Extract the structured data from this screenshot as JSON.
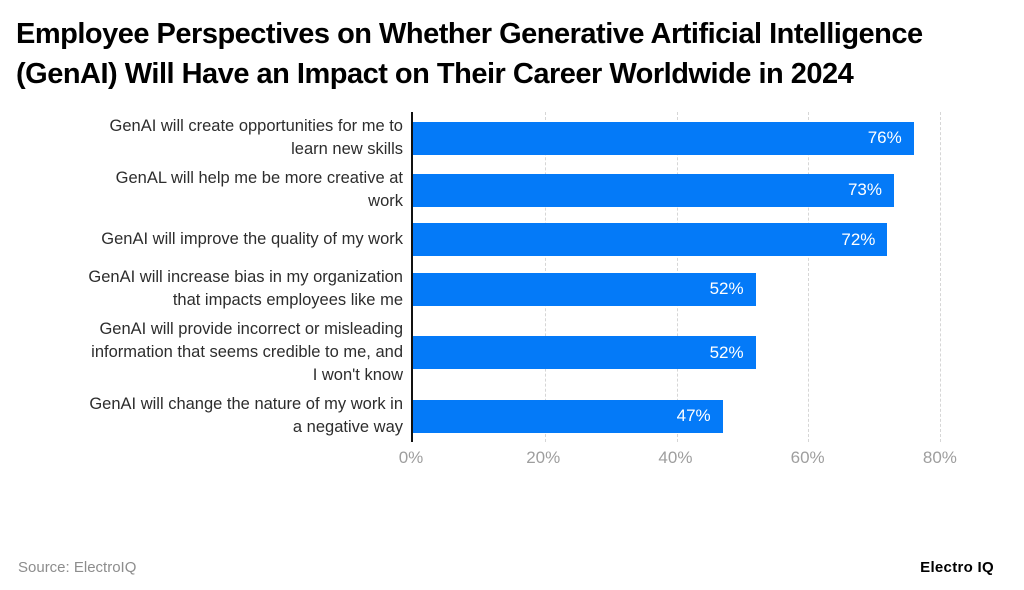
{
  "title": "Employee Perspectives on Whether Generative Artificial Intelligence (GenAI) Will Have an Impact on Their Career Worldwide in 2024",
  "chart_data": {
    "type": "bar",
    "orientation": "horizontal",
    "title": "Employee Perspectives on Whether Generative Artificial Intelligence (GenAI) Will Have an Impact on Their Career Worldwide in 2024",
    "categories": [
      "GenAI will create opportunities for me to learn new skills",
      "GenAL will help me be more creative at work",
      "GenAI will improve the quality of my work",
      "GenAI will increase bias in my organization that impacts employees like me",
      "GenAI will provide incorrect or misleading information that seems credible to me, and I won't know",
      "GenAI will change the nature of my work in a negative way"
    ],
    "label_lines": [
      [
        "GenAI will create opportunities for me to",
        "learn new skills"
      ],
      [
        "GenAL will help me be more creative at",
        "work"
      ],
      [
        "GenAI will improve the quality of my work"
      ],
      [
        "GenAI will increase bias in my organization",
        "that impacts employees like me"
      ],
      [
        "GenAI will provide incorrect or misleading",
        "information that seems credible to me, and",
        "I won't know"
      ],
      [
        "GenAI will change the nature of my work in",
        "a negative way"
      ]
    ],
    "values": [
      76,
      73,
      72,
      52,
      52,
      47
    ],
    "value_labels": [
      "76%",
      "73%",
      "72%",
      "52%",
      "52%",
      "47%"
    ],
    "ticks": [
      {
        "value": 0,
        "label": "0%"
      },
      {
        "value": 20,
        "label": "20%"
      },
      {
        "value": 40,
        "label": "40%"
      },
      {
        "value": 60,
        "label": "60%"
      },
      {
        "value": 80,
        "label": "80%"
      }
    ],
    "xlim": [
      0,
      90
    ],
    "xlabel": "",
    "ylabel": "",
    "grid": "vertical-dashed",
    "legend": "none",
    "bar_color": "#047af8",
    "gridline_color": "#d6d6d6",
    "axis_line_color": "#111111",
    "tick_label_color": "#9e9e9e",
    "category_label_color": "#2d2d2d",
    "value_label_color": "#ffffff"
  },
  "footer": {
    "source": "Source: ElectroIQ",
    "brand": "Electro IQ"
  }
}
